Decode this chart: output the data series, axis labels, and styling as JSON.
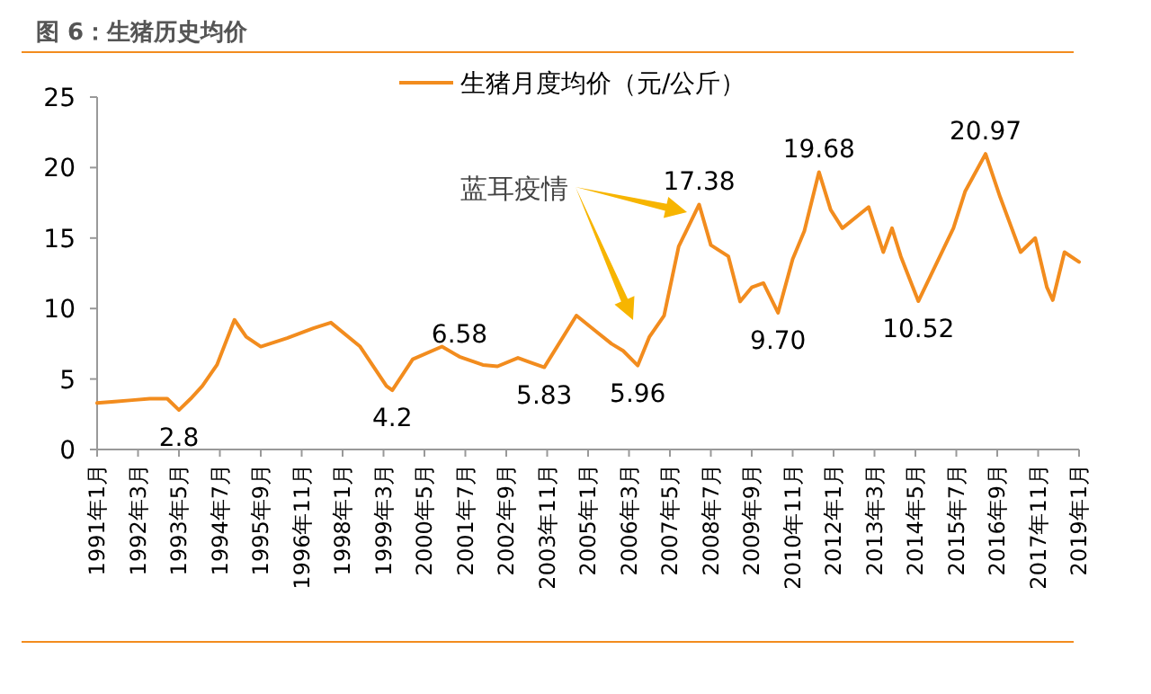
{
  "chart_data": {
    "type": "line",
    "title": "图 6：生猪历史均价",
    "legend": "top",
    "xlim": [
      "1991-01",
      "2019-01"
    ],
    "xticks": [
      {
        "value": "1991-01",
        "label": "1991年1月"
      },
      {
        "value": "1992-03",
        "label": "1992年3月"
      },
      {
        "value": "1993-05",
        "label": "1993年5月"
      },
      {
        "value": "1994-07",
        "label": "1994年7月"
      },
      {
        "value": "1995-09",
        "label": "1995年9月"
      },
      {
        "value": "1996-11",
        "label": "1996年11月"
      },
      {
        "value": "1998-01",
        "label": "1998年1月"
      },
      {
        "value": "1999-03",
        "label": "1999年3月"
      },
      {
        "value": "2000-05",
        "label": "2000年5月"
      },
      {
        "value": "2001-07",
        "label": "2001年7月"
      },
      {
        "value": "2002-09",
        "label": "2002年9月"
      },
      {
        "value": "2003-11",
        "label": "2003年11月"
      },
      {
        "value": "2005-01",
        "label": "2005年1月"
      },
      {
        "value": "2006-03",
        "label": "2006年3月"
      },
      {
        "value": "2007-05",
        "label": "2007年5月"
      },
      {
        "value": "2008-07",
        "label": "2008年7月"
      },
      {
        "value": "2009-09",
        "label": "2009年9月"
      },
      {
        "value": "2010-11",
        "label": "2010年11月"
      },
      {
        "value": "2012-01",
        "label": "2012年1月"
      },
      {
        "value": "2013-03",
        "label": "2013年3月"
      },
      {
        "value": "2014-05",
        "label": "2014年5月"
      },
      {
        "value": "2015-07",
        "label": "2015年7月"
      },
      {
        "value": "2016-09",
        "label": "2016年9月"
      },
      {
        "value": "2017-11",
        "label": "2017年11月"
      },
      {
        "value": "2019-01",
        "label": "2019年1月"
      }
    ],
    "ylim": [
      0,
      25
    ],
    "yticks": [
      0,
      5,
      10,
      15,
      20,
      25
    ],
    "annotations": [
      "蓝耳疫情"
    ],
    "series": [
      {
        "name": "生猪月度均价（元/公斤）",
        "color": "#f28c1e",
        "x": [
          "1991-01",
          "1991-07",
          "1992-01",
          "1992-07",
          "1993-01",
          "1993-05",
          "1993-09",
          "1994-01",
          "1994-06",
          "1994-12",
          "1995-04",
          "1995-09",
          "1996-06",
          "1997-03",
          "1997-09",
          "1998-07",
          "1999-04",
          "1999-06",
          "2000-01",
          "2000-11",
          "2001-05",
          "2002-01",
          "2002-06",
          "2003-01",
          "2003-05",
          "2003-10",
          "2004-09",
          "2005-03",
          "2005-09",
          "2006-01",
          "2006-06",
          "2006-10",
          "2007-03",
          "2007-08",
          "2008-03",
          "2008-07",
          "2009-01",
          "2009-05",
          "2009-09",
          "2010-01",
          "2010-06",
          "2010-11",
          "2011-03",
          "2011-08",
          "2011-12",
          "2012-04",
          "2013-01",
          "2013-06",
          "2013-09",
          "2013-12",
          "2014-06",
          "2015-06",
          "2015-10",
          "2016-05",
          "2016-10",
          "2017-05",
          "2017-10",
          "2018-02",
          "2018-04",
          "2018-08",
          "2019-01"
        ],
        "values": [
          3.3,
          3.4,
          3.5,
          3.6,
          3.6,
          2.8,
          3.6,
          4.5,
          6.0,
          9.2,
          8.0,
          7.3,
          7.9,
          8.6,
          9.0,
          7.3,
          4.5,
          4.2,
          6.4,
          7.3,
          6.58,
          6.0,
          5.9,
          6.5,
          6.2,
          5.83,
          9.5,
          8.5,
          7.5,
          7.0,
          5.96,
          8.0,
          9.5,
          14.4,
          17.38,
          14.5,
          13.7,
          10.5,
          11.5,
          11.8,
          9.7,
          13.5,
          15.5,
          19.68,
          17.0,
          15.7,
          17.2,
          14.0,
          15.7,
          13.7,
          10.52,
          15.7,
          18.3,
          20.97,
          17.9,
          14.0,
          15.0,
          11.5,
          10.6,
          14.0,
          13.3
        ],
        "value_labels": [
          null,
          null,
          null,
          null,
          null,
          "2.8",
          null,
          null,
          null,
          null,
          null,
          null,
          null,
          null,
          null,
          null,
          null,
          "4.2",
          null,
          null,
          "6.58",
          null,
          null,
          null,
          null,
          "5.83",
          null,
          null,
          null,
          null,
          "5.96",
          null,
          null,
          null,
          "17.38",
          null,
          null,
          null,
          null,
          null,
          "9.70",
          null,
          null,
          "19.68",
          null,
          null,
          null,
          null,
          null,
          null,
          "10.52",
          null,
          null,
          "20.97",
          null,
          null,
          null,
          null,
          null,
          null,
          null
        ]
      }
    ]
  }
}
